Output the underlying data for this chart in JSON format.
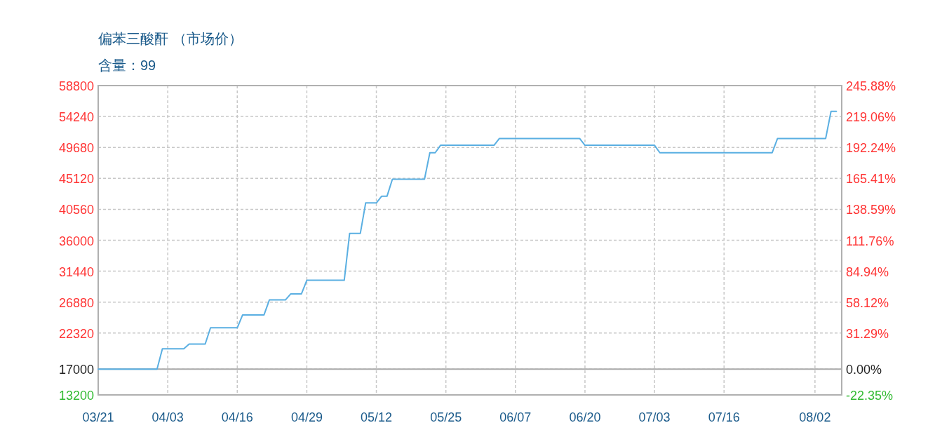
{
  "chart_data": {
    "type": "line",
    "title": "偏苯三酸酐 （市场价）",
    "subtitle": "含量：99",
    "x": [
      "--03-21",
      "--04-01",
      "--04-02",
      "--04-06",
      "--04-07",
      "--04-10",
      "--04-11",
      "--04-16",
      "--04-17",
      "--04-21",
      "--04-22",
      "--04-25",
      "--04-26",
      "--04-28",
      "--04-29",
      "--05-06",
      "--05-07",
      "--05-09",
      "--05-10",
      "--05-12",
      "--05-13",
      "--05-14",
      "--05-15",
      "--05-21",
      "--05-22",
      "--05-23",
      "--05-24",
      "--06-03",
      "--06-04",
      "--06-19",
      "--06-20",
      "--07-03",
      "--07-04",
      "--07-25",
      "--07-26",
      "--08-04",
      "--08-05",
      "--08-06"
    ],
    "series": [
      {
        "color": "#5aafe2",
        "values": [
          17000,
          17000,
          20000,
          20000,
          20700,
          20700,
          23100,
          23100,
          25000,
          25000,
          27200,
          27200,
          28100,
          28100,
          30100,
          30100,
          37000,
          37000,
          41500,
          41500,
          42500,
          42500,
          45000,
          45000,
          48900,
          48900,
          50000,
          50000,
          51000,
          51000,
          50000,
          50000,
          48900,
          48900,
          51000,
          51000,
          55000,
          55000
        ]
      }
    ],
    "xlim": [
      "--03-21",
      "--08-07"
    ],
    "xticks": [
      {
        "value": "--03-21",
        "label": "03/21"
      },
      {
        "value": "--04-03",
        "label": "04/03"
      },
      {
        "value": "--04-16",
        "label": "04/16"
      },
      {
        "value": "--04-29",
        "label": "04/29"
      },
      {
        "value": "--05-12",
        "label": "05/12"
      },
      {
        "value": "--05-25",
        "label": "05/25"
      },
      {
        "value": "--06-07",
        "label": "06/07"
      },
      {
        "value": "--06-20",
        "label": "06/20"
      },
      {
        "value": "--07-03",
        "label": "07/03"
      },
      {
        "value": "--07-16",
        "label": "07/16"
      },
      {
        "value": "--08-02",
        "label": "08/02"
      }
    ],
    "ylim": [
      13200,
      58800
    ],
    "yticks": [
      13200,
      17000,
      22320,
      26880,
      31440,
      36000,
      40560,
      45120,
      49680,
      54240,
      58800
    ],
    "y2lim": [
      -22.35,
      245.88
    ],
    "y2ticks": [
      {
        "value": -22.35,
        "label": "-22.35%"
      },
      {
        "value": 0,
        "label": "0.00%"
      },
      {
        "value": 31.29,
        "label": "31.29%"
      },
      {
        "value": 58.12,
        "label": "58.12%"
      },
      {
        "value": 84.94,
        "label": "84.94%"
      },
      {
        "value": 111.76,
        "label": "111.76%"
      },
      {
        "value": 138.59,
        "label": "138.59%"
      },
      {
        "value": 165.41,
        "label": "165.41%"
      },
      {
        "value": 192.24,
        "label": "192.24%"
      },
      {
        "value": 219.06,
        "label": "219.06%"
      },
      {
        "value": 245.88,
        "label": "245.88%"
      }
    ],
    "grid": true,
    "ref_lines": [
      {
        "axis": "y",
        "value": 17000,
        "color": "#aaaaaa"
      }
    ]
  }
}
